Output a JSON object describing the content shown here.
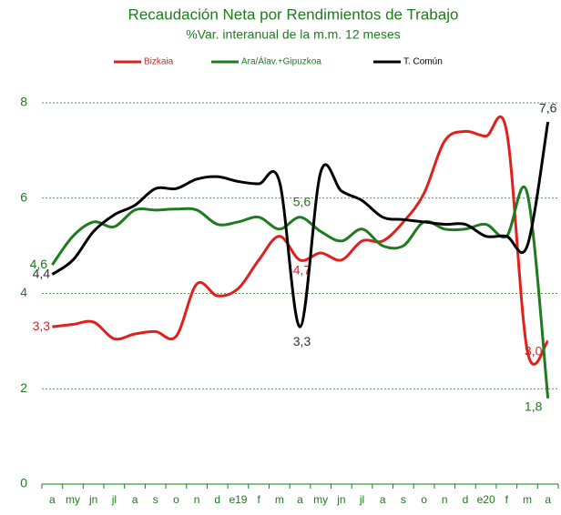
{
  "chart_data": {
    "type": "line",
    "title": "Recaudación Neta por Rendimientos de Trabajo",
    "subtitle": "%Var. interanual de la m.m. 12 meses",
    "categories": [
      "a",
      "my",
      "jn",
      "jl",
      "a",
      "s",
      "o",
      "n",
      "d",
      "e19",
      "f",
      "m",
      "a",
      "my",
      "jn",
      "jl",
      "a",
      "s",
      "o",
      "n",
      "d",
      "e20",
      "f",
      "m",
      "a"
    ],
    "ylim": [
      0,
      8
    ],
    "yticks": [
      0,
      2,
      4,
      6,
      8
    ],
    "grid": true,
    "legend": "top",
    "series": [
      {
        "name": "Bizkaia",
        "color": "#e0201b",
        "values": [
          3.3,
          3.35,
          3.4,
          3.05,
          3.15,
          3.2,
          3.1,
          4.2,
          3.95,
          4.1,
          4.7,
          5.2,
          4.7,
          4.85,
          4.7,
          5.1,
          5.1,
          5.5,
          6.1,
          7.2,
          7.4,
          7.3,
          7.4,
          2.8,
          3.0
        ],
        "value_labels": [
          "3,3",
          null,
          null,
          null,
          null,
          null,
          null,
          null,
          null,
          null,
          null,
          null,
          "4,7",
          null,
          null,
          null,
          null,
          null,
          null,
          null,
          null,
          null,
          null,
          null,
          "3,0"
        ]
      },
      {
        "name": "Ara/Álav.+Gipuzkoa",
        "color": "#1e7b1e",
        "values": [
          4.6,
          5.2,
          5.5,
          5.4,
          5.75,
          5.75,
          5.77,
          5.75,
          5.45,
          5.5,
          5.6,
          5.35,
          5.6,
          5.3,
          5.1,
          5.35,
          5.0,
          5.0,
          5.5,
          5.35,
          5.35,
          5.45,
          5.2,
          6.1,
          1.8
        ],
        "value_labels": [
          "4,6",
          null,
          null,
          null,
          null,
          null,
          null,
          null,
          null,
          null,
          null,
          null,
          "5,6",
          null,
          null,
          null,
          null,
          null,
          null,
          null,
          null,
          null,
          null,
          null,
          "1,8"
        ]
      },
      {
        "name": "T. Común",
        "color": "#000000",
        "values": [
          4.4,
          4.7,
          5.3,
          5.65,
          5.85,
          6.2,
          6.2,
          6.4,
          6.45,
          6.35,
          6.3,
          6.35,
          3.3,
          6.55,
          6.15,
          5.95,
          5.6,
          5.55,
          5.5,
          5.45,
          5.45,
          5.2,
          5.2,
          5.0,
          7.6
        ],
        "value_labels": [
          "4,4",
          null,
          null,
          null,
          null,
          null,
          null,
          null,
          null,
          null,
          null,
          null,
          "3,3",
          null,
          null,
          null,
          null,
          null,
          null,
          null,
          null,
          null,
          null,
          null,
          "7,6"
        ]
      }
    ]
  }
}
